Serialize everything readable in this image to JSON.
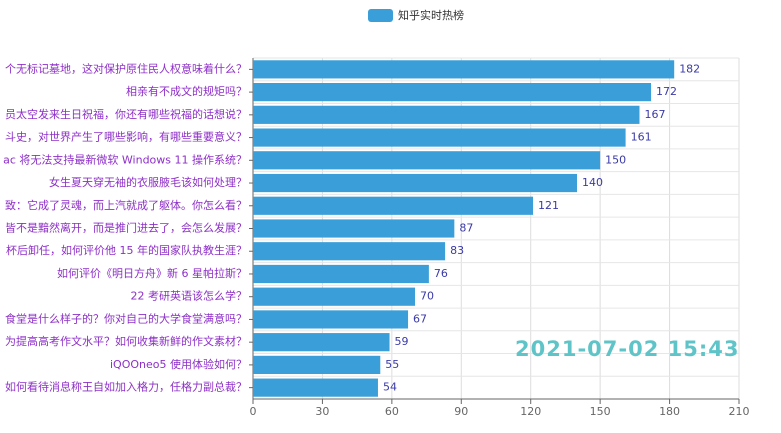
{
  "chart_data": {
    "type": "bar",
    "orientation": "horizontal",
    "legend": "知乎实时热榜",
    "legend_position": "top",
    "color": "#3a9fd8",
    "categories": [
      "个无标记墓地，这对保护原住民人权意味着什么？",
      "相亲有不成文的规矩吗？",
      "员太空发来生日祝福，你还有哪些祝福的话想说？",
      "斗史，对世界产生了哪些影响，有哪些重要意义？",
      "ac 将无法支持最新微软 Windows 11 操作系统？",
      "女生夏天穿无袖的衣服腋毛该如何处理？",
      "致：它成了灵魂，而上汽就成了躯体。你怎么看？",
      "皆不是黯然离开，而是推门进去了，会怎么发展？",
      "杯后卸任，如何评价他 15 年的国家队执教生涯？",
      "如何评价《明日方舟》新 6 星帕拉斯？",
      "22 考研英语该怎么学？",
      "食堂是什么样子的？你对自己的大学食堂满意吗？",
      "为提高高考作文水平？如何收集新鲜的作文素材？",
      "iQOOneo5 使用体验如何？",
      "如何看待消息称王自如加入格力，任格力副总裁？"
    ],
    "values": [
      182,
      172,
      167,
      161,
      150,
      140,
      121,
      87,
      83,
      76,
      70,
      67,
      59,
      55,
      54
    ],
    "xlim": [
      0,
      210
    ],
    "xticks": [
      0,
      30,
      60,
      90,
      120,
      150,
      180,
      210
    ],
    "grid": true,
    "annotation": "2021-07-02 15:43"
  }
}
